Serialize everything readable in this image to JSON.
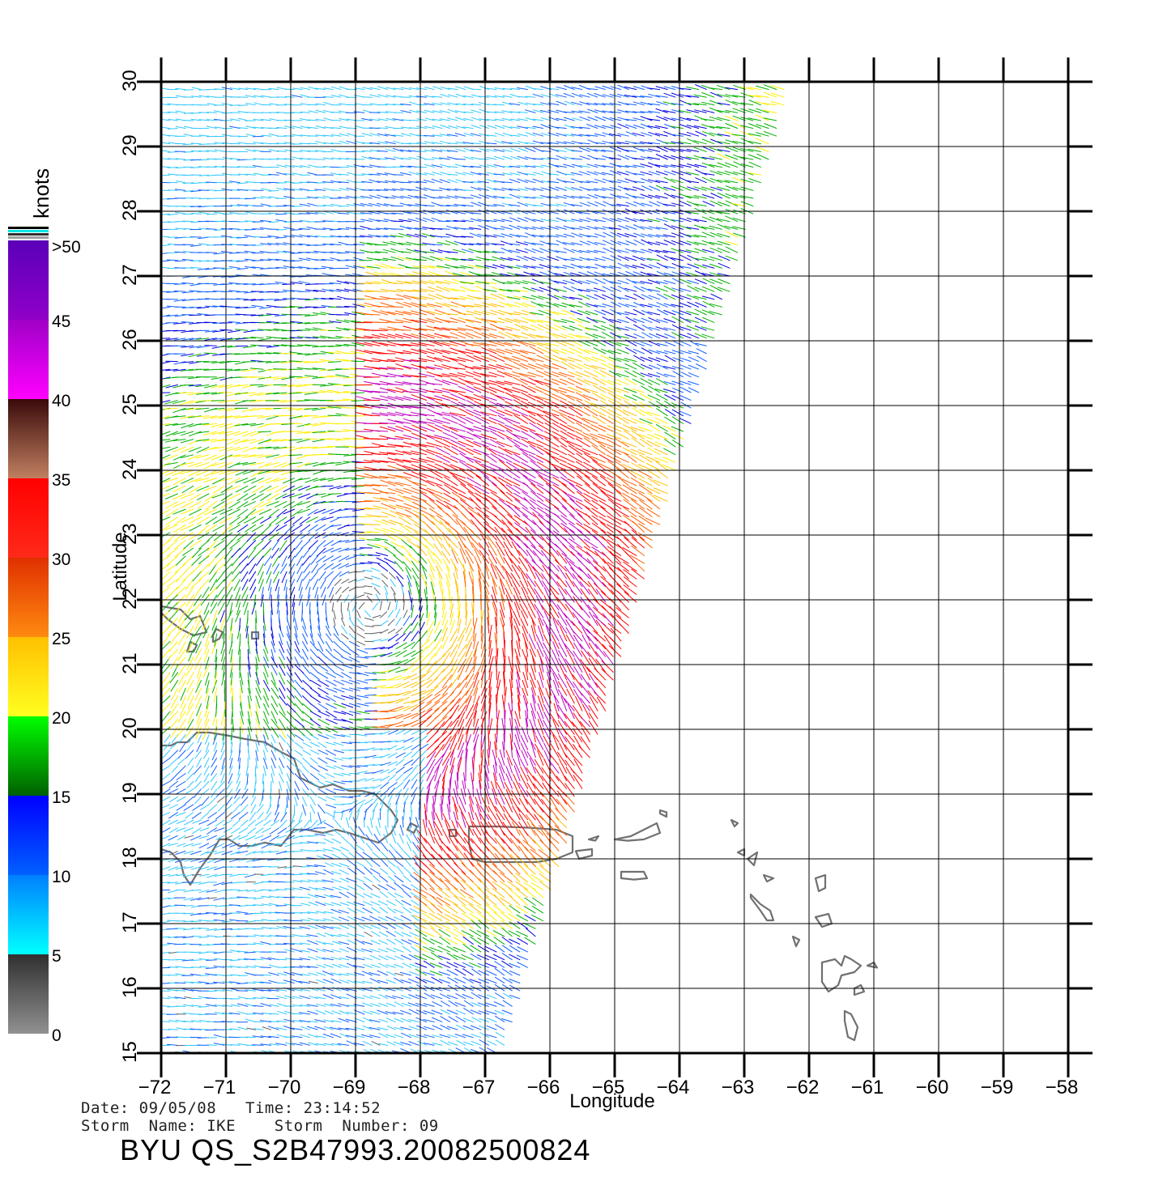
{
  "map": {
    "lon_ticks": [
      -72,
      -71,
      -70,
      -69,
      -68,
      -67,
      -66,
      -65,
      -64,
      -63,
      -62,
      -61,
      -60,
      -59,
      -58
    ],
    "lat_ticks": [
      15,
      16,
      17,
      18,
      19,
      20,
      21,
      22,
      23,
      24,
      25,
      26,
      27,
      28,
      29,
      30
    ],
    "lon_range": [
      -72,
      -58
    ],
    "lat_range": [
      15,
      30
    ],
    "xlabel": "Longitude",
    "ylabel": "Latitude",
    "grid": true,
    "land_outline_color": "#707070",
    "storm_center_approx": {
      "lon": -68.8,
      "lat": 21.9
    }
  },
  "colorbar": {
    "unit": "knots",
    "labels": [
      ">50",
      "45",
      "40",
      "35",
      "30",
      "25",
      "20",
      "15",
      "10",
      "5",
      "0"
    ],
    "segments": [
      {
        "from": 45,
        "to": 50,
        "top": "#5a00b8",
        "bottom": "#9000c8"
      },
      {
        "from": 40,
        "to": 45,
        "top": "#a000c8",
        "bottom": "#ff00ff"
      },
      {
        "from": 35,
        "to": 40,
        "top": "#3a0a0a",
        "bottom": "#c08060"
      },
      {
        "from": 30,
        "to": 35,
        "top": "#ff0000",
        "bottom": "#ff2a1a"
      },
      {
        "from": 25,
        "to": 30,
        "top": "#e03000",
        "bottom": "#ff8a10"
      },
      {
        "from": 20,
        "to": 25,
        "top": "#ffc000",
        "bottom": "#ffff20"
      },
      {
        "from": 15,
        "to": 20,
        "top": "#00ff00",
        "bottom": "#006000"
      },
      {
        "from": 10,
        "to": 15,
        "top": "#0000ff",
        "bottom": "#0060ff"
      },
      {
        "from": 5,
        "to": 10,
        "top": "#0080ff",
        "bottom": "#00ffff"
      },
      {
        "from": 0,
        "to": 5,
        "top": "#303030",
        "bottom": "#909090"
      }
    ]
  },
  "footer": {
    "date_line": "Date: 09/05/08   Time: 23:14:52",
    "storm_line": "Storm  Name: IKE    Storm  Number: 09",
    "product_id": "BYU  QS_S2B47993.20082500824"
  }
}
